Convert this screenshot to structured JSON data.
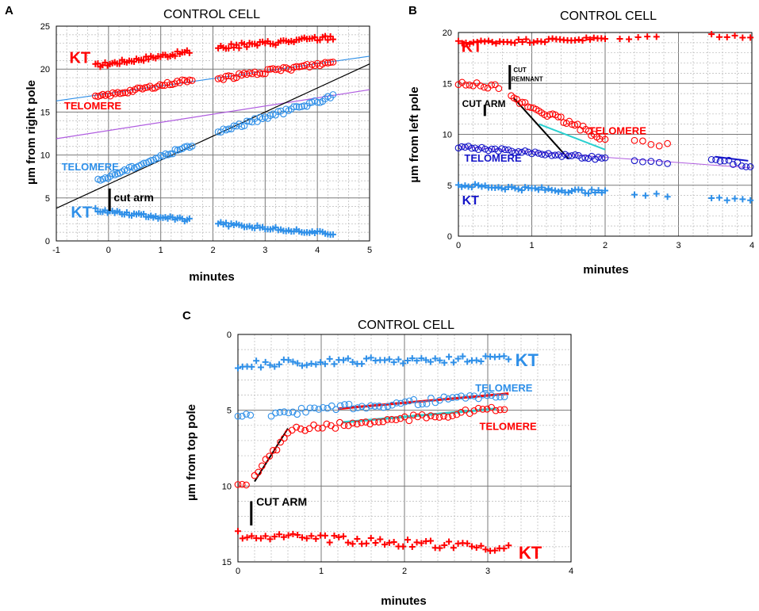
{
  "colors": {
    "red": "#ff0000",
    "blue": "#2e8fe8",
    "navy": "#1515c8",
    "cyan": "#2ad0d0",
    "violet": "#b05de0",
    "black": "#000000"
  },
  "chart_data": [
    {
      "panel_label": "A",
      "title": "CONTROL CELL",
      "type": "scatter",
      "xlabel": "minutes",
      "ylabel": "µm from right pole",
      "xlim": [
        -1,
        5
      ],
      "ylim": [
        0,
        25
      ],
      "xticks": [
        "-1",
        "0",
        "1",
        "2",
        "3",
        "4",
        "5"
      ],
      "yticks": [
        "0",
        "5",
        "10",
        "15",
        "20",
        "25"
      ],
      "series": [
        {
          "name": "KT (red)",
          "marker": "plus",
          "color": "#ff0000",
          "x0": -0.25,
          "x1": 1.55,
          "y0": 20.4,
          "y1": 22.0,
          "n": 40,
          "jitter": 0.25
        },
        {
          "name": "KT (red) 2",
          "marker": "plus",
          "color": "#ff0000",
          "x0": 2.1,
          "x1": 4.3,
          "y0": 22.5,
          "y1": 23.7,
          "n": 45,
          "jitter": 0.3
        },
        {
          "name": "TELOMERE (red)",
          "marker": "circle",
          "color": "#ff0000",
          "x0": -0.25,
          "x1": 1.6,
          "y0": 16.7,
          "y1": 18.8,
          "n": 40,
          "jitter": 0.2
        },
        {
          "name": "TELOMERE (red) 2",
          "marker": "circle",
          "color": "#ff0000",
          "x0": 2.1,
          "x1": 4.3,
          "y0": 18.9,
          "y1": 20.8,
          "n": 45,
          "jitter": 0.25
        },
        {
          "name": "TELOMERE (blue)",
          "marker": "circle",
          "color": "#2e8fe8",
          "x0": -0.2,
          "x1": 1.6,
          "y0": 7.0,
          "y1": 11.2,
          "n": 40,
          "jitter": 0.2
        },
        {
          "name": "TELOMERE (blue) 2",
          "marker": "circle",
          "color": "#2e8fe8",
          "x0": 2.1,
          "x1": 4.3,
          "y0": 12.7,
          "y1": 16.8,
          "n": 45,
          "jitter": 0.25
        },
        {
          "name": "KT (blue)",
          "marker": "plus",
          "color": "#2e8fe8",
          "x0": -0.25,
          "x1": 1.55,
          "y0": 3.6,
          "y1": 2.4,
          "n": 40,
          "jitter": 0.2
        },
        {
          "name": "KT (blue) 2",
          "marker": "plus",
          "color": "#2e8fe8",
          "x0": 2.1,
          "x1": 4.3,
          "y0": 2.0,
          "y1": 0.8,
          "n": 45,
          "jitter": 0.2
        }
      ],
      "lines": [
        {
          "x": [
            -1,
            5
          ],
          "y": [
            16.3,
            21.5
          ],
          "color": "#2e8fe8"
        },
        {
          "x": [
            -1,
            5
          ],
          "y": [
            11.9,
            17.6
          ],
          "color": "#b05de0"
        },
        {
          "x": [
            -1,
            5
          ],
          "y": [
            3.8,
            20.6
          ],
          "color": "#000000"
        }
      ],
      "annotations": [
        {
          "text": "KT",
          "x": -0.75,
          "y": 20.7,
          "color": "#ff0000",
          "size": 20
        },
        {
          "text": "TELOMERE",
          "x": -0.85,
          "y": 15.3,
          "color": "#ff0000",
          "size": 13
        },
        {
          "text": "TELOMERE",
          "x": -0.9,
          "y": 8.2,
          "color": "#2e8fe8",
          "size": 13
        },
        {
          "text": "cut arm",
          "x": 0.1,
          "y": 4.6,
          "color": "#000000",
          "size": 14
        },
        {
          "text": "KT",
          "x": -0.72,
          "y": 2.7,
          "color": "#2e8fe8",
          "size": 20
        }
      ],
      "marks": [
        {
          "type": "bar",
          "x": 0.02,
          "y0": 3.5,
          "y1": 6.1,
          "color": "#000000"
        }
      ]
    },
    {
      "panel_label": "B",
      "title": "CONTROL CELL",
      "type": "scatter",
      "xlabel": "minutes",
      "ylabel": "µm from left pole",
      "xlim": [
        0,
        4
      ],
      "ylim": [
        0,
        20
      ],
      "xticks": [
        "0",
        "1",
        "2",
        "3",
        "4"
      ],
      "yticks": [
        "0",
        "5",
        "10",
        "15",
        "20"
      ],
      "series": [
        {
          "name": "KT (red)",
          "marker": "plus",
          "color": "#ff0000",
          "x0": 0,
          "x1": 2.0,
          "y0": 19.0,
          "y1": 19.4,
          "n": 40,
          "jitter": 0.2
        },
        {
          "name": "KT (red) 2",
          "marker": "plus",
          "color": "#ff0000",
          "x0": 2.2,
          "x1": 2.7,
          "y0": 19.4,
          "y1": 19.5,
          "n": 5,
          "jitter": 0.15
        },
        {
          "name": "KT (red) 3",
          "marker": "plus",
          "color": "#ff0000",
          "x0": 3.45,
          "x1": 3.98,
          "y0": 19.7,
          "y1": 19.6,
          "n": 6,
          "jitter": 0.15
        },
        {
          "name": "TELOMERE (red) early",
          "marker": "circle",
          "color": "#ff0000",
          "x0": 0,
          "x1": 0.55,
          "y0": 14.9,
          "y1": 14.7,
          "n": 12,
          "jitter": 0.25
        },
        {
          "name": "TELOMERE (red) recoil",
          "marker": "circle",
          "color": "#ff0000",
          "x0": 0.72,
          "x1": 2.0,
          "y0": 13.5,
          "y1": 9.6,
          "n": 35,
          "jitter": 0.3
        },
        {
          "name": "TELOMERE (red) late",
          "marker": "circle",
          "color": "#ff0000",
          "x0": 2.4,
          "x1": 2.85,
          "y0": 9.4,
          "y1": 8.9,
          "n": 5,
          "jitter": 0.2
        },
        {
          "name": "TELOMERE (blue)",
          "marker": "circle",
          "color": "#1515c8",
          "x0": 0,
          "x1": 2.0,
          "y0": 8.8,
          "y1": 7.6,
          "n": 45,
          "jitter": 0.15
        },
        {
          "name": "TELOMERE (blue) 2",
          "marker": "circle",
          "color": "#1515c8",
          "x0": 2.4,
          "x1": 2.85,
          "y0": 7.4,
          "y1": 7.1,
          "n": 5,
          "jitter": 0.15
        },
        {
          "name": "TELOMERE (blue) 3",
          "marker": "circle",
          "color": "#1515c8",
          "x0": 3.45,
          "x1": 3.98,
          "y0": 7.7,
          "y1": 6.8,
          "n": 10,
          "jitter": 0.2
        },
        {
          "name": "KT (blue)",
          "marker": "plus",
          "color": "#2e8fe8",
          "x0": 0,
          "x1": 2.0,
          "y0": 5.0,
          "y1": 4.3,
          "n": 45,
          "jitter": 0.2
        },
        {
          "name": "KT (blue) 2",
          "marker": "plus",
          "color": "#2e8fe8",
          "x0": 2.4,
          "x1": 2.85,
          "y0": 4.2,
          "y1": 4.0,
          "n": 4,
          "jitter": 0.15
        },
        {
          "name": "KT (blue) 3",
          "marker": "plus",
          "color": "#2e8fe8",
          "x0": 3.45,
          "x1": 3.98,
          "y0": 3.7,
          "y1": 3.5,
          "n": 6,
          "jitter": 0.15
        }
      ],
      "lines": [
        {
          "x": [
            0.75,
            1.5
          ],
          "y": [
            13.6,
            7.6
          ],
          "color": "#000000",
          "width": 2
        },
        {
          "x": [
            1.1,
            2.0
          ],
          "y": [
            11.0,
            8.5
          ],
          "color": "#2ad0d0",
          "width": 2
        },
        {
          "x": [
            0,
            4
          ],
          "y": [
            8.8,
            6.7
          ],
          "color": "#b05de0",
          "width": 1
        },
        {
          "x": [
            3.5,
            3.95
          ],
          "y": [
            7.8,
            7.4
          ],
          "color": "#1515c8",
          "width": 2
        }
      ],
      "annotations": [
        {
          "text": "KT",
          "x": 0.04,
          "y": 18.1,
          "color": "#ff0000",
          "size": 20
        },
        {
          "text": "CUT",
          "x": 0.75,
          "y": 16.1,
          "color": "#000000",
          "size": 8
        },
        {
          "text": "REMNANT",
          "x": 0.72,
          "y": 15.2,
          "color": "#000000",
          "size": 8
        },
        {
          "text": "CUT ARM",
          "x": 0.05,
          "y": 12.7,
          "color": "#000000",
          "size": 12
        },
        {
          "text": "TELOMERE",
          "x": 1.78,
          "y": 10.0,
          "color": "#ff0000",
          "size": 13
        },
        {
          "text": "TELOMERE",
          "x": 0.08,
          "y": 7.3,
          "color": "#1515c8",
          "size": 13
        },
        {
          "text": "KT",
          "x": 0.05,
          "y": 3.1,
          "color": "#1515c8",
          "size": 16
        }
      ],
      "marks": [
        {
          "type": "bar",
          "x": 0.7,
          "y0": 14.4,
          "y1": 16.8,
          "color": "#000000"
        },
        {
          "type": "bar",
          "x": 0.36,
          "y0": 11.8,
          "y1": 12.9,
          "color": "#000000"
        }
      ]
    },
    {
      "panel_label": "C",
      "title": "CONTROL CELL",
      "type": "scatter",
      "xlabel": "minutes",
      "ylabel": "µm from top pole",
      "xlim": [
        0,
        4
      ],
      "ylim": [
        15,
        0
      ],
      "xticks": [
        "0",
        "1",
        "2",
        "3",
        "4"
      ],
      "yticks": [
        "0",
        "5",
        "10",
        "15"
      ],
      "series": [
        {
          "name": "KT (blue)",
          "marker": "plus",
          "color": "#2e8fe8",
          "x0": 0,
          "x1": 3.25,
          "y0": 2.0,
          "y1": 1.5,
          "n": 60,
          "jitter": 0.25
        },
        {
          "name": "TELOMERE (blue) early",
          "marker": "circle",
          "color": "#2e8fe8",
          "x0": 0.0,
          "x1": 0.15,
          "y0": 5.4,
          "y1": 5.3,
          "n": 4,
          "jitter": 0.1
        },
        {
          "name": "TELOMERE (blue)",
          "marker": "circle",
          "color": "#2e8fe8",
          "x0": 0.4,
          "x1": 3.2,
          "y0": 5.2,
          "y1": 4.0,
          "n": 55,
          "jitter": 0.2
        },
        {
          "name": "TELOMERE (red) early",
          "marker": "circle",
          "color": "#ff0000",
          "x0": 0.0,
          "x1": 0.1,
          "y0": 9.9,
          "y1": 9.9,
          "n": 3,
          "jitter": 0.05
        },
        {
          "name": "TELOMERE (red) recoil",
          "marker": "circle",
          "color": "#ff0000",
          "x0": 0.2,
          "x1": 0.6,
          "y0": 9.6,
          "y1": 6.4,
          "n": 10,
          "jitter": 0.3
        },
        {
          "name": "TELOMERE (red)",
          "marker": "circle",
          "color": "#ff0000",
          "x0": 0.65,
          "x1": 3.2,
          "y0": 6.3,
          "y1": 4.9,
          "n": 50,
          "jitter": 0.2
        },
        {
          "name": "KT (red)",
          "marker": "plus",
          "color": "#ff0000",
          "x0": 0,
          "x1": 3.25,
          "y0": 13.2,
          "y1": 14.1,
          "n": 60,
          "jitter": 0.25
        }
      ],
      "lines": [
        {
          "x": [
            0.2,
            0.6
          ],
          "y": [
            9.7,
            6.2
          ],
          "color": "#000000",
          "width": 2
        },
        {
          "x": [
            1.2,
            3.25
          ],
          "y": [
            4.9,
            3.9
          ],
          "color": "#ff0000",
          "width": 3
        },
        {
          "x": [
            1.25,
            3.1
          ],
          "y": [
            5.8,
            4.9
          ],
          "color": "#2ad0d0",
          "width": 3
        }
      ],
      "annotations": [
        {
          "text": "KT",
          "x": 3.33,
          "y": 2.1,
          "color": "#2e8fe8",
          "size": 22
        },
        {
          "text": "TELOMERE",
          "x": 2.85,
          "y": 3.75,
          "color": "#2e8fe8",
          "size": 13
        },
        {
          "text": "TELOMERE",
          "x": 2.9,
          "y": 6.3,
          "color": "#ff0000",
          "size": 13
        },
        {
          "text": "CUT ARM",
          "x": 0.22,
          "y": 11.3,
          "color": "#000000",
          "size": 14
        },
        {
          "text": "KT",
          "x": 3.37,
          "y": 14.8,
          "color": "#ff0000",
          "size": 22
        }
      ],
      "marks": [
        {
          "type": "bar",
          "x": 0.16,
          "y0": 11.0,
          "y1": 12.6,
          "color": "#000000"
        }
      ]
    }
  ]
}
